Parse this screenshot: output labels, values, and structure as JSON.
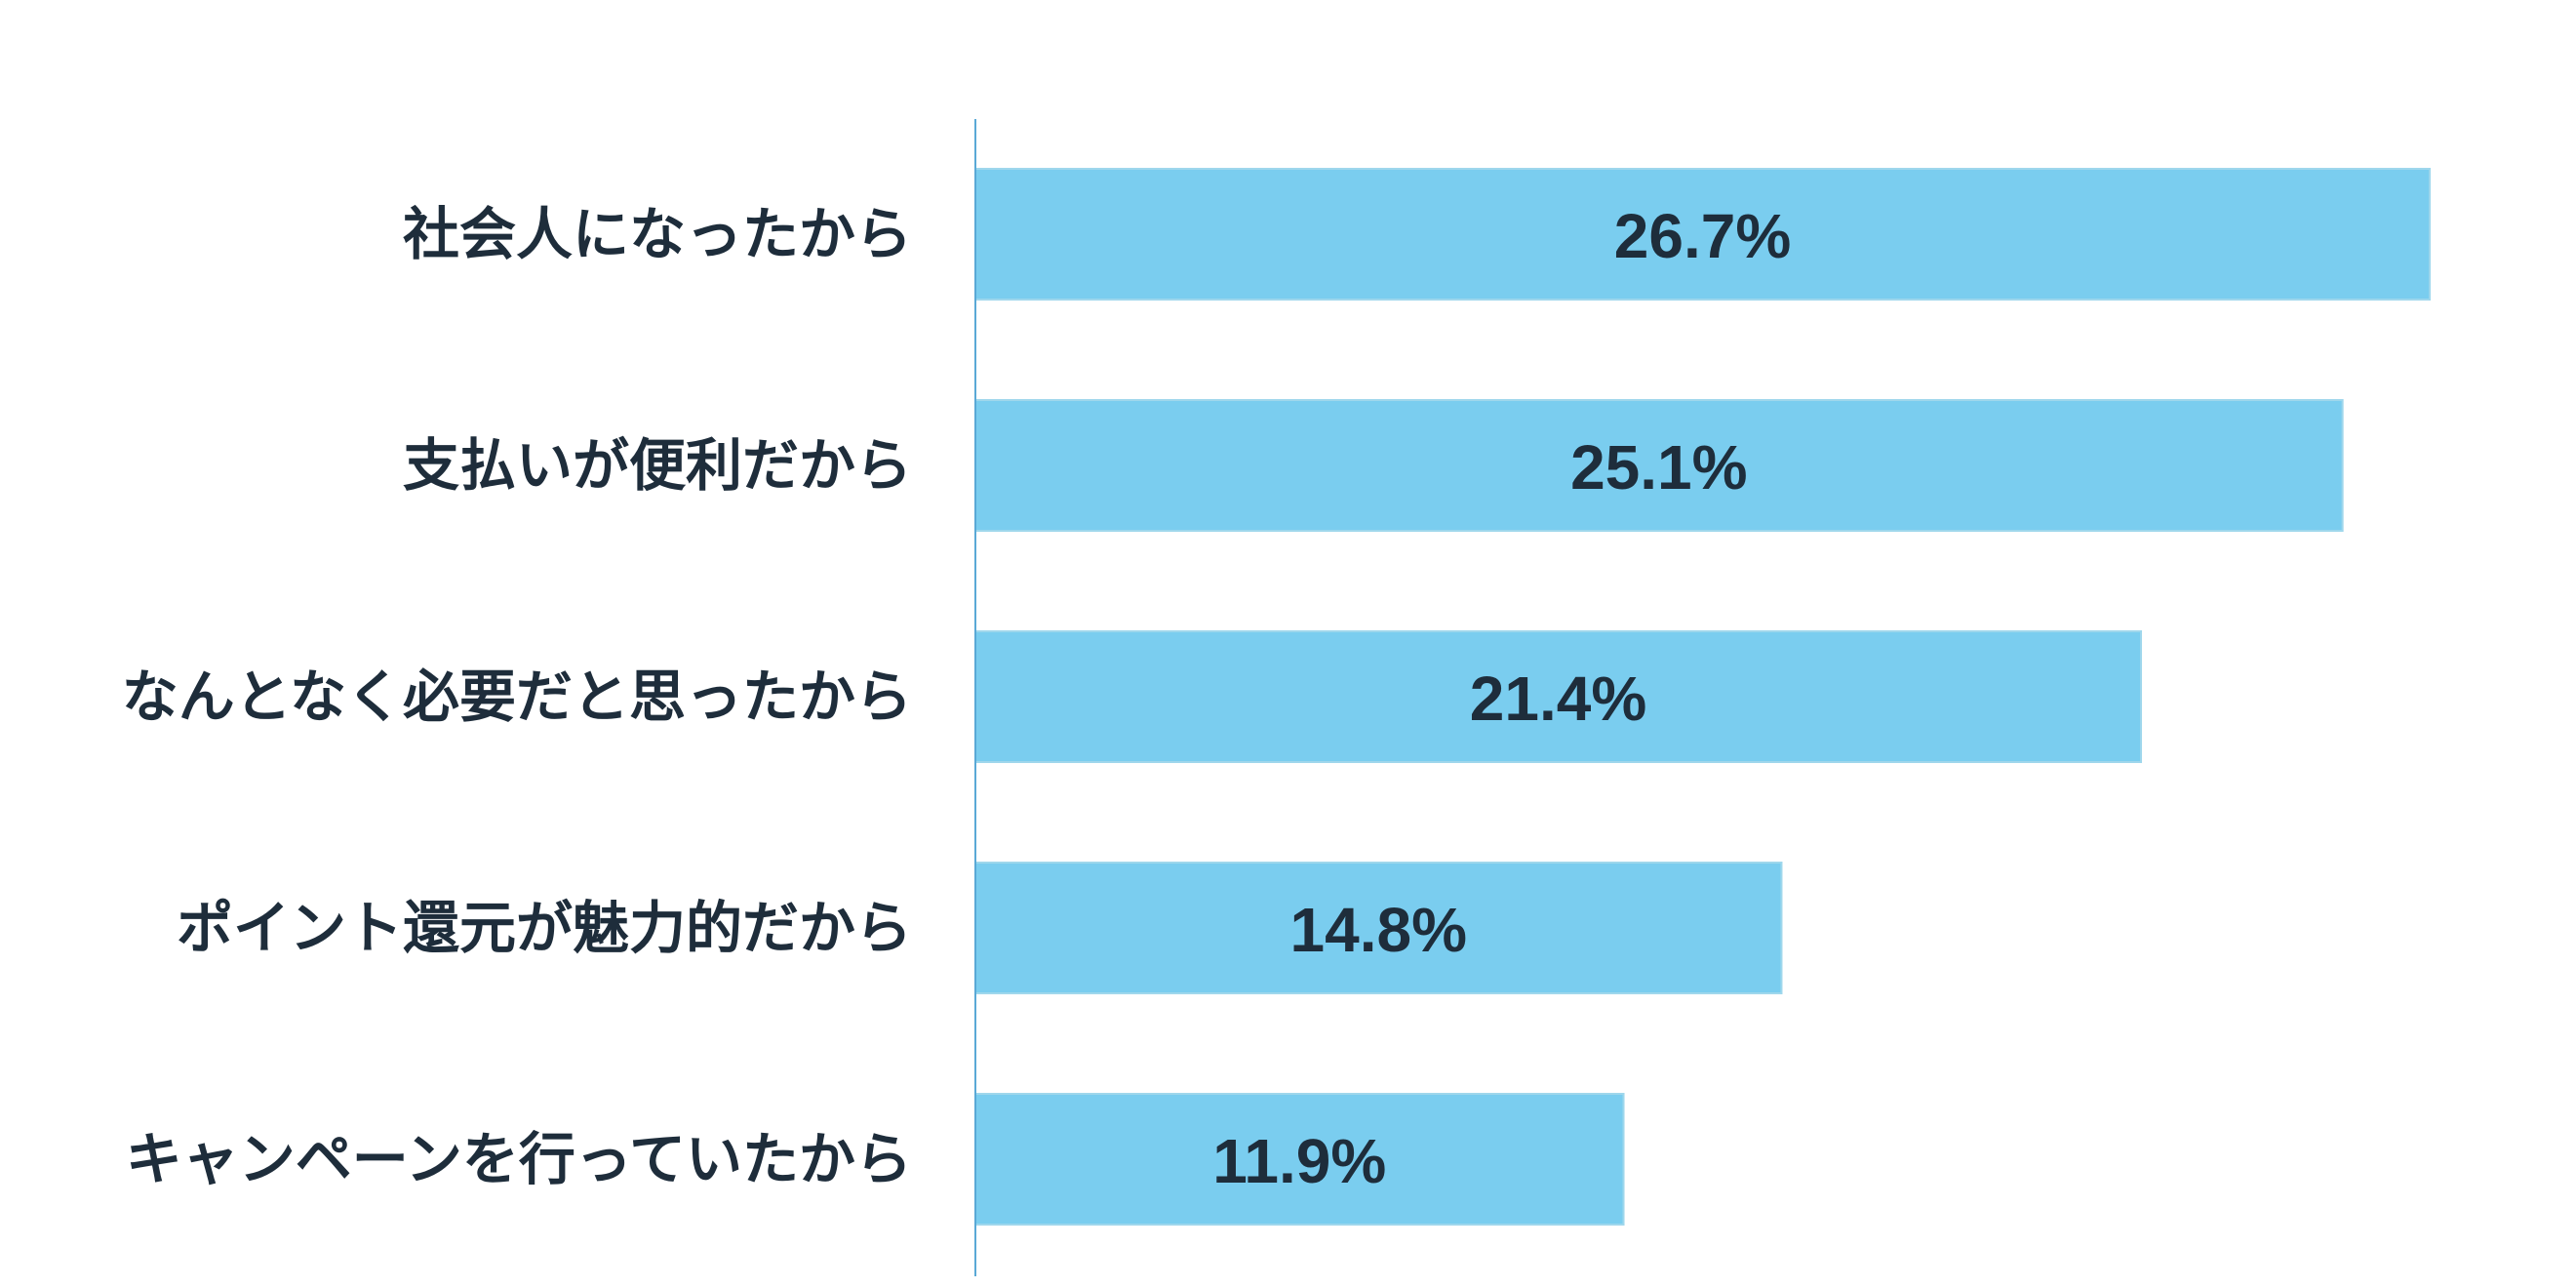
{
  "chart_data": {
    "type": "bar",
    "orientation": "horizontal",
    "categories": [
      "社会人になったから",
      "支払いが便利だから",
      "なんとなく必要だと思ったから",
      "ポイント還元が魅力的だから",
      "キャンペーンを行っていたから"
    ],
    "values": [
      26.7,
      25.1,
      21.4,
      14.8,
      11.9
    ],
    "value_labels": [
      "26.7%",
      "25.1%",
      "21.4%",
      "14.8%",
      "11.9%"
    ],
    "unit": "%",
    "title": "",
    "xlabel": "",
    "ylabel": "",
    "xlim": [
      0,
      30
    ],
    "grid": false,
    "legend": "none",
    "colors": {
      "bar_fill": "#7acdef",
      "bar_stroke": "#9fd7ec",
      "axis": "#5aa9d6",
      "text": "#1e2d3b"
    }
  }
}
